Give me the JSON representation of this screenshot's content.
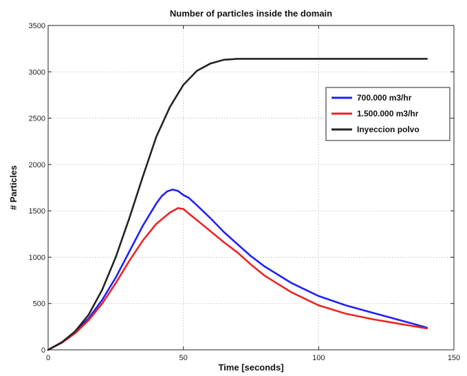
{
  "chart_data": {
    "type": "line",
    "title": "Number of particles inside the domain",
    "xlabel": "Time [seconds]",
    "ylabel": "# Particles",
    "xlim": [
      0,
      150
    ],
    "ylim": [
      0,
      3500
    ],
    "xticks": [
      0,
      50,
      100,
      150
    ],
    "yticks": [
      0,
      500,
      1000,
      1500,
      2000,
      2500,
      3000,
      3500
    ],
    "grid": true,
    "legend_position": "upper-right",
    "series": [
      {
        "name": "700.000 m3/hr",
        "color": "#1f1fff",
        "x": [
          0,
          5,
          10,
          15,
          20,
          25,
          30,
          35,
          40,
          42,
          44,
          46,
          48,
          50,
          52,
          55,
          60,
          65,
          70,
          75,
          80,
          90,
          100,
          110,
          120,
          130,
          140
        ],
        "y": [
          0,
          80,
          190,
          340,
          540,
          780,
          1060,
          1340,
          1580,
          1660,
          1710,
          1730,
          1715,
          1670,
          1640,
          1560,
          1420,
          1270,
          1140,
          1010,
          900,
          720,
          580,
          480,
          400,
          320,
          240
        ]
      },
      {
        "name": "1.500.000 m3/hr",
        "color": "#ee2222",
        "x": [
          0,
          5,
          10,
          15,
          20,
          25,
          30,
          35,
          40,
          45,
          48,
          50,
          52,
          55,
          60,
          65,
          70,
          75,
          80,
          90,
          100,
          110,
          120,
          130,
          140
        ],
        "y": [
          0,
          75,
          180,
          320,
          500,
          720,
          960,
          1180,
          1360,
          1480,
          1530,
          1520,
          1470,
          1400,
          1280,
          1160,
          1050,
          920,
          800,
          620,
          480,
          390,
          330,
          280,
          230
        ]
      },
      {
        "name": "Inyeccion polvo",
        "color": "#222222",
        "x": [
          0,
          5,
          10,
          15,
          20,
          25,
          30,
          35,
          40,
          45,
          50,
          55,
          60,
          65,
          70,
          80,
          100,
          120,
          140
        ],
        "y": [
          0,
          80,
          200,
          380,
          650,
          1000,
          1420,
          1870,
          2300,
          2620,
          2860,
          3010,
          3090,
          3130,
          3140,
          3140,
          3140,
          3140,
          3140
        ]
      }
    ]
  }
}
